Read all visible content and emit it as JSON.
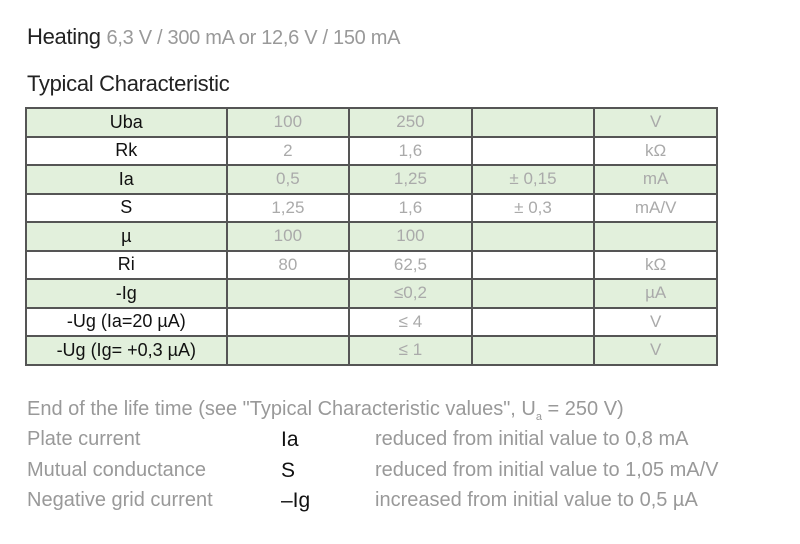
{
  "heating": {
    "label": "Heating",
    "value": "6,3 V / 300 mA  or 12,6 V / 150 mA"
  },
  "section_title": "Typical Characteristic",
  "colors": {
    "row_green": "#e2f0dc",
    "border": "#555555",
    "value_text": "#aaaaaa"
  },
  "table": {
    "rows": [
      {
        "param": "Uba",
        "v1": "100",
        "v2": "250",
        "tol": "",
        "unit": "V"
      },
      {
        "param": "Rk",
        "v1": "2",
        "v2": "1,6",
        "tol": "",
        "unit": "kΩ"
      },
      {
        "param": "Ia",
        "v1": "0,5",
        "v2": "1,25",
        "tol": "± 0,15",
        "unit": "mA"
      },
      {
        "param": "S",
        "v1": "1,25",
        "v2": "1,6",
        "tol": "± 0,3",
        "unit": "mA/V"
      },
      {
        "param": "µ",
        "v1": "100",
        "v2": "100",
        "tol": "",
        "unit": ""
      },
      {
        "param": "Ri",
        "v1": "80",
        "v2": "62,5",
        "tol": "",
        "unit": "kΩ"
      },
      {
        "param": "-Ig",
        "v1": "",
        "v2": "≤0,2",
        "tol": "",
        "unit": "µA"
      },
      {
        "param": "-Ug  (Ia=20 µA)",
        "v1": "",
        "v2": "≤ 4",
        "tol": "",
        "unit": "V"
      },
      {
        "param": "-Ug (Ig= +0,3 µA)",
        "v1": "",
        "v2": "≤ 1",
        "tol": "",
        "unit": "V"
      }
    ]
  },
  "end_of_life": {
    "heading_pre": "End of the life time (see \"Typical Characteristic values\", U",
    "heading_sub": "a",
    "heading_post": " = 250 V)",
    "items": [
      {
        "label": "Plate current",
        "symbol": "Ia",
        "desc": "reduced from initial value to 0,8 mA"
      },
      {
        "label": "Mutual conductance",
        "symbol": "S",
        "desc": "reduced from initial value to 1,05 mA/V"
      },
      {
        "label": "Negative grid current",
        "symbol": "–Ig",
        "desc": "increased from initial value to 0,5 µA"
      }
    ]
  }
}
